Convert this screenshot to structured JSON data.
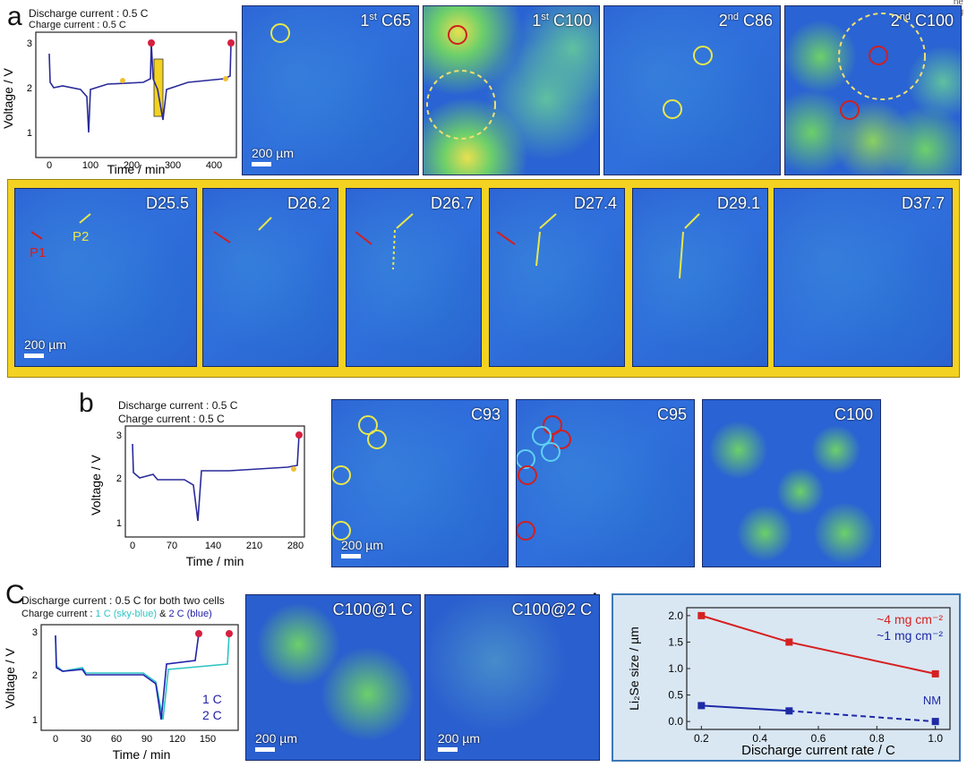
{
  "panel_labels": {
    "a": "a",
    "b": "b",
    "c": "C",
    "d": "d"
  },
  "corner_text": {
    "line1": "ne",
    "line2": "g"
  },
  "panel_a": {
    "caption_discharge": "Discharge current : 0.5 C",
    "caption_charge": "Charge current : 0.5 C",
    "ylabel": "Voltage / V",
    "xlabel": "Time / min",
    "xticks": [
      "0",
      "100",
      "200",
      "300",
      "400"
    ],
    "yticks": [
      "1",
      "2",
      "3"
    ],
    "images_top": [
      {
        "pre": "1",
        "sup": "st",
        "post": " C65"
      },
      {
        "pre": "1",
        "sup": "st",
        "post": " C100"
      },
      {
        "pre": "2",
        "sup": "nd",
        "post": " C86"
      },
      {
        "pre": "2",
        "sup": "nd",
        "post": " C100"
      }
    ],
    "images_bottom": [
      "D25.5",
      "D26.2",
      "D26.7",
      "D27.4",
      "D29.1",
      "D37.7"
    ],
    "scale": "200 µm",
    "p1": "P1",
    "p2": "P2"
  },
  "panel_b": {
    "caption_discharge": "Discharge current : 0.5 C",
    "caption_charge": "Charge current : 0.5 C",
    "ylabel": "Voltage / V",
    "xlabel": "Time / min",
    "xticks": [
      "0",
      "70",
      "140",
      "210",
      "280"
    ],
    "yticks": [
      "1",
      "2",
      "3"
    ],
    "images": [
      "C93",
      "C95",
      "C100"
    ],
    "scale": "200 µm"
  },
  "panel_c": {
    "caption_discharge": "Discharge current : 0.5 C for both two cells",
    "caption_charge_prefix": "Charge current : ",
    "caption_charge_1c": "1 C (sky-blue)",
    "caption_charge_mid": " & ",
    "caption_charge_2c": "2 C (blue)",
    "ylabel": "Voltage / V",
    "xlabel": "Time / min",
    "xticks": [
      "0",
      "30",
      "60",
      "90",
      "120",
      "150"
    ],
    "yticks": [
      "1",
      "2",
      "3"
    ],
    "legend_1c": "1 C",
    "legend_2c": "2 C",
    "images": [
      "C100@1 C",
      "C100@2 C"
    ],
    "scale": "200 µm",
    "colors": {
      "c1": "#2ec4c4",
      "c2": "#2222aa"
    }
  },
  "chart_data": {
    "type": "line",
    "xlabel": "Discharge current rate / C",
    "ylabel": "Li₂Se size / µm",
    "xlim": [
      0.15,
      1.05
    ],
    "ylim": [
      -0.15,
      2.15
    ],
    "xticks": [
      "0.2",
      "0.4",
      "0.6",
      "0.8",
      "1.0"
    ],
    "yticks": [
      "0.0",
      "0.5",
      "1.0",
      "1.5",
      "2.0"
    ],
    "series": [
      {
        "name": "~4 mg cm⁻²",
        "color": "#d62020",
        "x": [
          0.2,
          0.5,
          1.0
        ],
        "values": [
          2.0,
          1.5,
          0.9
        ]
      },
      {
        "name": "~1 mg cm⁻²",
        "color": "#1e2aa6",
        "x": [
          0.2,
          0.5,
          1.0
        ],
        "values": [
          0.3,
          0.2,
          0.0
        ]
      }
    ],
    "annotations": [
      "NM"
    ]
  }
}
